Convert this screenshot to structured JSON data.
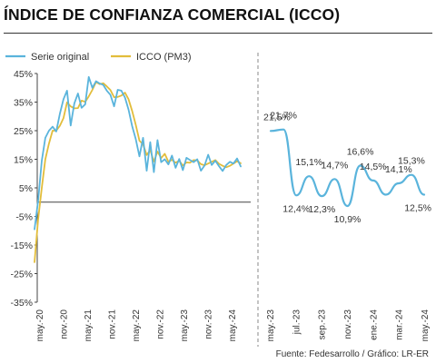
{
  "title": "ÍNDICE DE CONFIANZA COMERCIAL (ICCO)",
  "source": "Fuente: Fedesarrollo / Gráfico: LR-ER",
  "colors": {
    "series_original": "#5ab4dc",
    "series_pm3": "#e2bd3b",
    "zero_line": "#444444",
    "divider": "#8a8a8a"
  },
  "chart_data": [
    {
      "type": "line",
      "ylim": [
        -35,
        45
      ],
      "yticks": [
        "45%",
        "35%",
        "25%",
        "15%",
        "5%",
        "-5%",
        "-15%",
        "-25%",
        "-35%"
      ],
      "x_ticks": [
        "may.-20",
        "nov.-20",
        "may.-21",
        "nov.-21",
        "may.-22",
        "nov.-22",
        "may.-23",
        "nov.-23",
        "may.-24"
      ],
      "legend_position": "top",
      "series": [
        {
          "name": "Serie original",
          "color": "#5ab4dc",
          "values": [
            -9.5,
            0.6,
            14.5,
            22.5,
            25.0,
            26.4,
            24.7,
            30.9,
            36.0,
            39.0,
            26.8,
            34.5,
            38.0,
            33.0,
            34.2,
            43.8,
            40.0,
            42.3,
            41.5,
            41.0,
            39.0,
            37.5,
            33.5,
            39.3,
            39.0,
            36.6,
            32.4,
            26.6,
            22.0,
            16.0,
            22.5,
            11.0,
            21.0,
            10.5,
            21.7,
            14.0,
            15.0,
            13.2,
            16.3,
            12.0,
            15.1,
            11.2,
            15.5,
            14.7,
            14.0,
            15.0,
            11.0,
            12.8,
            16.6,
            13.0,
            14.5,
            12.6,
            10.9,
            13.0,
            14.1,
            13.5,
            15.3,
            12.5
          ]
        },
        {
          "name": "ICCO (PM3)",
          "color": "#e2bd3b",
          "values": [
            -21.0,
            -6.0,
            5.0,
            15.0,
            20.5,
            25.0,
            25.0,
            26.7,
            29.4,
            34.9,
            33.5,
            32.8,
            32.9,
            35.5,
            35.1,
            37.0,
            39.3,
            42.0,
            41.3,
            41.6,
            40.5,
            39.2,
            36.7,
            36.8,
            37.3,
            38.3,
            36.0,
            31.9,
            27.0,
            21.5,
            20.2,
            16.5,
            18.2,
            14.2,
            17.7,
            15.4,
            16.9,
            14.1,
            14.8,
            13.8,
            14.5,
            12.8,
            13.9,
            13.8,
            14.7,
            14.6,
            13.3,
            12.9,
            13.5,
            14.1,
            14.7,
            13.4,
            12.7,
            12.2,
            12.7,
            13.5,
            14.3,
            13.6
          ]
        }
      ]
    },
    {
      "type": "line",
      "x_ticks": [
        "may.-23",
        "jul.-23",
        "sep.-23",
        "nov.-23",
        "ene.-24",
        "mar.-24",
        "may.-24"
      ],
      "series": [
        {
          "name": "Serie original",
          "values": [
            21.5,
            21.7,
            12.4,
            15.1,
            12.3,
            14.7,
            10.9,
            16.6,
            14.5,
            12.5,
            14.1,
            15.3,
            12.5
          ],
          "labels": [
            "21,5%",
            "21,7%",
            "12,4%",
            "15,1%",
            "12,3%",
            "14,7%",
            "10,9%",
            "16,6%",
            "14,5%",
            "",
            "14,1%",
            "15,3%",
            "12,5%"
          ]
        }
      ]
    }
  ]
}
